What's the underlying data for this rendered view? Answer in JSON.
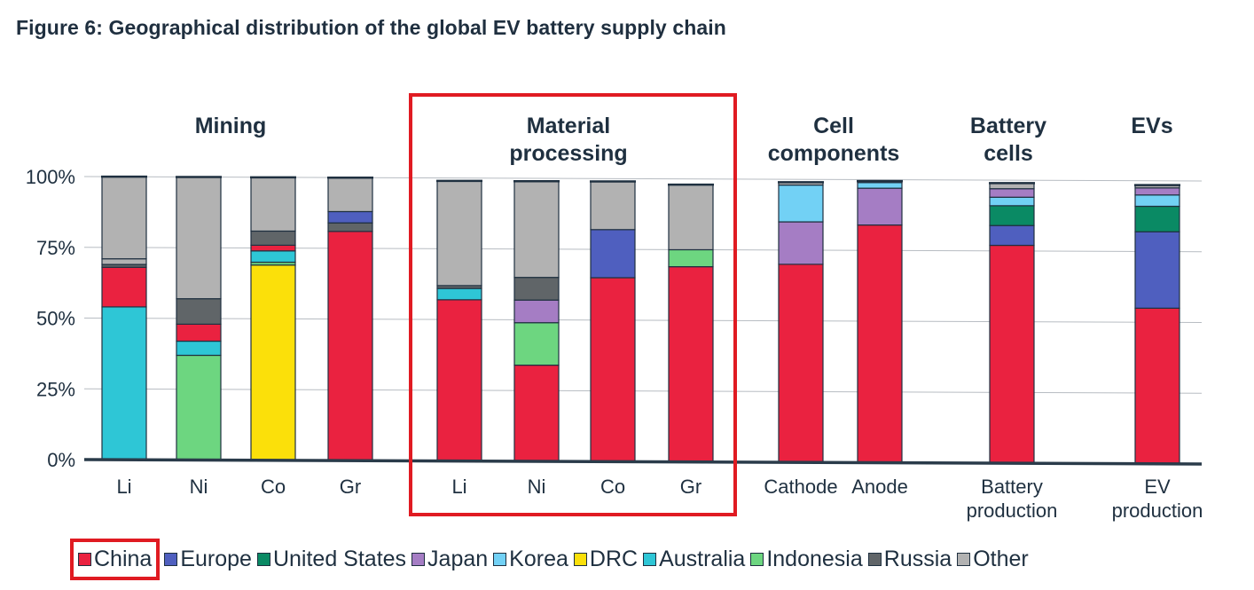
{
  "title": "Figure 6:  Geographical distribution of the global EV battery supply chain",
  "colors": {
    "China": "#ea2240",
    "Europe": "#4f5fbf",
    "United States": "#0a8a64",
    "Japan": "#a57dc4",
    "Korea": "#72d1f5",
    "DRC": "#fbe00a",
    "Australia": "#2ec6d6",
    "Indonesia": "#6dd680",
    "Russia": "#606568",
    "Other": "#b2b2b2",
    "highlight": "#e01b22",
    "grid": "#b7bcc2",
    "axis": "#2a3b4a"
  },
  "chart_data": {
    "type": "bar",
    "stacked": true,
    "title": "Geographical distribution of the global EV battery supply chain",
    "ylim": [
      0,
      100
    ],
    "yticks": [
      "0%",
      "25%",
      "50%",
      "75%",
      "100%"
    ],
    "groups": [
      {
        "label": "Mining",
        "highlighted": false,
        "bars": [
          {
            "category": "Li",
            "segments": [
              [
                "Australia",
                54
              ],
              [
                "China",
                14
              ],
              [
                "Russia",
                1
              ],
              [
                "Other",
                2
              ],
              [
                "Other",
                29
              ]
            ]
          },
          {
            "category": "Ni",
            "segments": [
              [
                "Indonesia",
                37
              ],
              [
                "Australia",
                5
              ],
              [
                "China",
                6
              ],
              [
                "Russia",
                9
              ],
              [
                "Other",
                43
              ]
            ]
          },
          {
            "category": "Co",
            "segments": [
              [
                "DRC",
                69
              ],
              [
                "Indonesia",
                1
              ],
              [
                "Australia",
                4
              ],
              [
                "China",
                2
              ],
              [
                "Russia",
                5
              ],
              [
                "Other",
                19
              ]
            ]
          },
          {
            "category": "Gr",
            "segments": [
              [
                "China",
                81
              ],
              [
                "Russia",
                3
              ],
              [
                "Europe",
                4
              ],
              [
                "Other",
                12
              ]
            ]
          }
        ]
      },
      {
        "label": "Material processing",
        "highlighted": true,
        "bars": [
          {
            "category": "Li",
            "segments": [
              [
                "China",
                57
              ],
              [
                "Australia",
                4
              ],
              [
                "Russia",
                1
              ],
              [
                "Other",
                37
              ]
            ]
          },
          {
            "category": "Ni",
            "segments": [
              [
                "China",
                34
              ],
              [
                "Indonesia",
                15
              ],
              [
                "Japan",
                8
              ],
              [
                "Russia",
                8
              ],
              [
                "Other",
                34
              ]
            ]
          },
          {
            "category": "Co",
            "segments": [
              [
                "China",
                65
              ],
              [
                "Europe",
                17
              ],
              [
                "Other",
                17
              ]
            ]
          },
          {
            "category": "Gr",
            "segments": [
              [
                "China",
                69
              ],
              [
                "Indonesia",
                6
              ],
              [
                "Other",
                23
              ]
            ]
          }
        ]
      },
      {
        "label": "Cell components",
        "highlighted": false,
        "bars": [
          {
            "category": "Cathode",
            "segments": [
              [
                "China",
                70
              ],
              [
                "Japan",
                15
              ],
              [
                "Korea",
                13
              ],
              [
                "Other",
                1
              ]
            ]
          },
          {
            "category": "Anode",
            "segments": [
              [
                "China",
                84
              ],
              [
                "Japan",
                13
              ],
              [
                "Korea",
                2
              ],
              [
                "Other",
                0.5
              ]
            ]
          }
        ]
      },
      {
        "label": "Battery cells",
        "highlighted": false,
        "bars": [
          {
            "category": "Battery production",
            "segments": [
              [
                "China",
                77
              ],
              [
                "Europe",
                7
              ],
              [
                "United States",
                7
              ],
              [
                "Korea",
                3
              ],
              [
                "Japan",
                3
              ],
              [
                "Other",
                2
              ]
            ]
          }
        ]
      },
      {
        "label": "EVs",
        "highlighted": false,
        "bars": [
          {
            "category": "EV production",
            "segments": [
              [
                "China",
                55
              ],
              [
                "Europe",
                27
              ],
              [
                "United States",
                9
              ],
              [
                "Korea",
                4
              ],
              [
                "Japan",
                2.5
              ],
              [
                "Other",
                1
              ]
            ]
          }
        ]
      }
    ],
    "legend": [
      "China",
      "Europe",
      "United States",
      "Japan",
      "Korea",
      "DRC",
      "Australia",
      "Indonesia",
      "Russia",
      "Other"
    ],
    "legend_highlight": "China",
    "legend_placement": "bottom"
  }
}
